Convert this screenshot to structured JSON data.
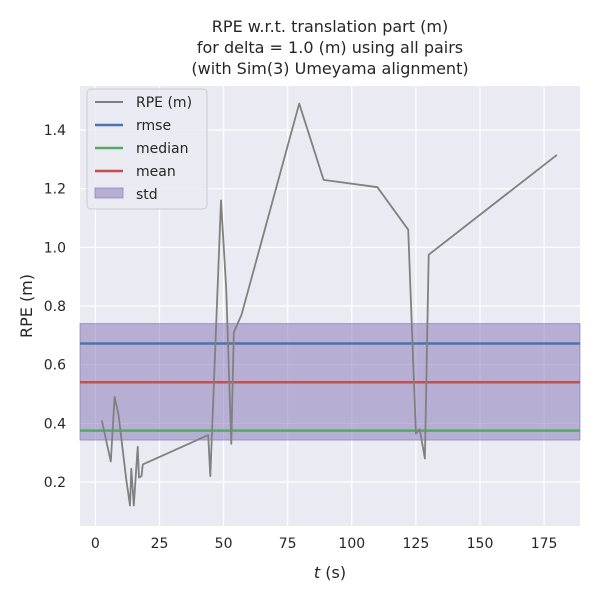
{
  "chart_data": {
    "type": "line",
    "title_lines": [
      "RPE w.r.t. translation part (m)",
      "for delta = 1.0 (m) using all pairs",
      "(with Sim(3) Umeyama alignment)"
    ],
    "xlabel_var": "t",
    "xlabel_unit": " (s)",
    "ylabel": "RPE (m)",
    "xlim": [
      -6,
      189
    ],
    "ylim": [
      0.05,
      1.55
    ],
    "x_ticks": [
      0,
      25,
      50,
      75,
      100,
      125,
      150,
      175
    ],
    "y_ticks": [
      0.2,
      0.4,
      0.6,
      0.8,
      1.0,
      1.2,
      1.4
    ],
    "grid": true,
    "legend_placement": "upper-left",
    "series": [
      {
        "name": "RPE (m)",
        "color": "#808080",
        "x": [
          2.5,
          6,
          7.5,
          9,
          12,
          13.5,
          14,
          15,
          16.5,
          17,
          18,
          18.5,
          44,
          44.8,
          49,
          51,
          53,
          54,
          57,
          79.5,
          89,
          110,
          122,
          125,
          126.5,
          128.5,
          130,
          180
        ],
        "y": [
          0.41,
          0.27,
          0.49,
          0.43,
          0.21,
          0.12,
          0.245,
          0.12,
          0.32,
          0.215,
          0.22,
          0.26,
          0.36,
          0.22,
          1.16,
          0.86,
          0.33,
          0.71,
          0.77,
          1.49,
          1.23,
          1.205,
          1.06,
          0.365,
          0.38,
          0.28,
          0.975,
          1.315
        ]
      }
    ],
    "stats": {
      "rmse": {
        "name": "rmse",
        "value": 0.672,
        "color": "#4c72b0"
      },
      "median": {
        "name": "median",
        "value": 0.375,
        "color": "#55a868"
      },
      "mean": {
        "name": "mean",
        "value": 0.54,
        "color": "#c44e52"
      },
      "std": {
        "name": "std",
        "low": 0.343,
        "high": 0.74,
        "color": "#8172b3"
      }
    }
  }
}
